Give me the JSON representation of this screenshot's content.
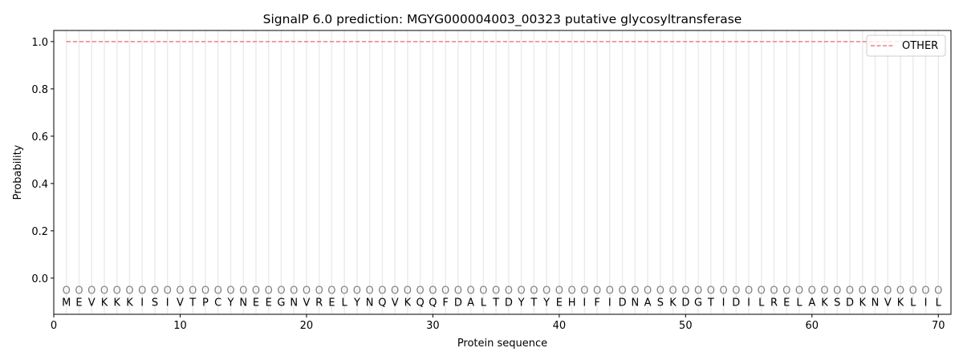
{
  "chart_data": {
    "type": "line",
    "title": "SignalP 6.0 prediction: MGYG000004003_00323 putative glycosyltransferase",
    "xlabel": "Protein sequence",
    "ylabel": "Probability",
    "xlim": [
      0,
      71
    ],
    "ylim": [
      -0.153,
      1.047
    ],
    "xticks": [
      0,
      10,
      20,
      30,
      40,
      50,
      60,
      70
    ],
    "yticks": [
      0.0,
      0.2,
      0.4,
      0.6,
      0.8,
      1.0
    ],
    "ytick_labels": [
      "0.0",
      "0.2",
      "0.4",
      "0.6",
      "0.8",
      "1.0"
    ],
    "grid": "vertical lines at each residue",
    "legend_position": "top-right",
    "series": [
      {
        "name": "OTHER",
        "color": "#f08080",
        "style": "dashed",
        "x_start": 1,
        "x_end": 70,
        "value": 1.0
      }
    ],
    "sequence": [
      "M",
      "E",
      "V",
      "K",
      "K",
      "K",
      "I",
      "S",
      "I",
      "V",
      "T",
      "P",
      "C",
      "Y",
      "N",
      "E",
      "E",
      "G",
      "N",
      "V",
      "R",
      "E",
      "L",
      "Y",
      "N",
      "Q",
      "V",
      "K",
      "Q",
      "Q",
      "F",
      "D",
      "A",
      "L",
      "T",
      "D",
      "Y",
      "T",
      "Y",
      "E",
      "H",
      "I",
      "F",
      "I",
      "D",
      "N",
      "A",
      "S",
      "K",
      "D",
      "G",
      "T",
      "I",
      "D",
      "I",
      "L",
      "R",
      "E",
      "L",
      "A",
      "K",
      "S",
      "D",
      "K",
      "N",
      "V",
      "K",
      "L",
      "I",
      "L"
    ],
    "predicted_labels": "OOOOOOOOOOOOOOOOOOOOOOOOOOOOOOOOOOOOOOOOOOOOOOOOOOOOOOOOOOOOOOOOOOOOOO"
  }
}
